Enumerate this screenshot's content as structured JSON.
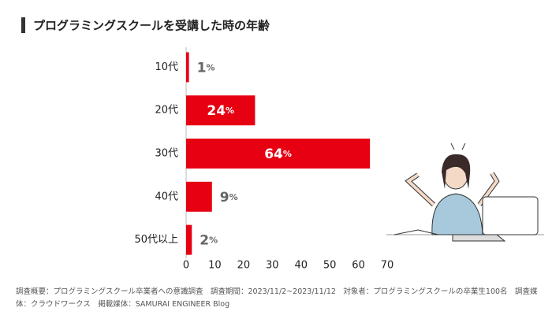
{
  "chart_data": {
    "type": "bar",
    "orientation": "horizontal",
    "title": "プログラミングスクールを受講した時の年齢",
    "categories": [
      "10代",
      "20代",
      "30代",
      "40代",
      "50代以上"
    ],
    "values": [
      1,
      24,
      64,
      9,
      2
    ],
    "value_labels": [
      "1%",
      "24%",
      "64%",
      "9%",
      "2%"
    ],
    "color": "#e60012",
    "xlim": [
      0,
      70
    ],
    "xticks": [
      0,
      10,
      20,
      30,
      40,
      50,
      60,
      70
    ],
    "note": "調査概要：プログラミングスクール卒業者への意識調査　調査期間：2023/11/2~2023/11/12　対象者：プログラミングスクールの卒業生100名　調査媒体：クラウドワークス　掲載媒体：SAMURAI ENGINEER Blog"
  }
}
